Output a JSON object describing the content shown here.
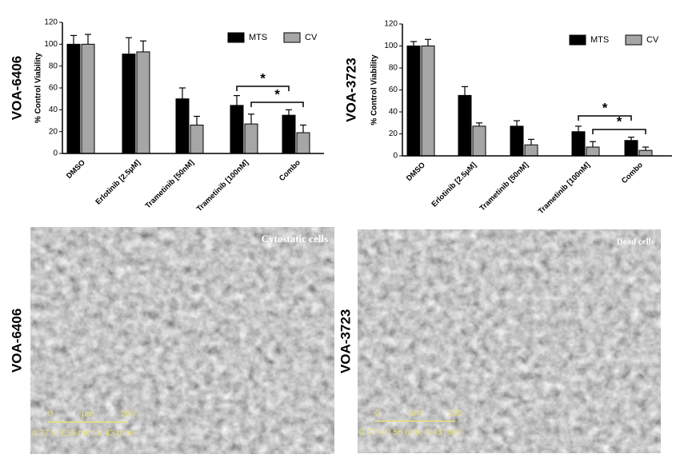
{
  "chart_data": [
    {
      "type": "bar",
      "title": "VOA-6406",
      "y_label": "% Control Viability",
      "categories": [
        "DMSO",
        "Erlotinib [2.5μM]",
        "Trametinib [50nM]",
        "Trametinib [100nM]",
        "Combo"
      ],
      "series": [
        {
          "name": "MTS",
          "color": "#000000",
          "values": [
            100,
            91,
            50,
            44,
            35
          ],
          "errors": [
            8,
            15,
            10,
            9,
            5
          ]
        },
        {
          "name": "CV",
          "color": "#a6a6a6",
          "values": [
            100,
            93,
            26,
            27,
            19
          ],
          "errors": [
            9,
            10,
            8,
            9,
            7
          ]
        }
      ],
      "ylim": [
        0,
        120
      ],
      "yticks": [
        0,
        20,
        40,
        60,
        80,
        100,
        120
      ],
      "annotations": [
        "*",
        "*"
      ]
    },
    {
      "type": "bar",
      "title": "VOA-3723",
      "y_label": "% Control Viability",
      "categories": [
        "DMSO",
        "Erlotinib [2.5μM]",
        "Trametinib [50nM]",
        "Trametinib [100nM]",
        "Combo"
      ],
      "series": [
        {
          "name": "MTS",
          "color": "#000000",
          "values": [
            100,
            55,
            27,
            22,
            14
          ],
          "errors": [
            4,
            8,
            5,
            5,
            3
          ]
        },
        {
          "name": "CV",
          "color": "#a6a6a6",
          "values": [
            100,
            27,
            10,
            8,
            5
          ],
          "errors": [
            6,
            3,
            5,
            5,
            3
          ]
        }
      ],
      "ylim": [
        0,
        120
      ],
      "yticks": [
        0,
        20,
        40,
        60,
        80,
        100,
        120
      ],
      "annotations": [
        "*",
        "*"
      ]
    }
  ],
  "panels": [
    {
      "label": "VOA-6406",
      "caption": "Cytostatic cells",
      "scale_start": "0",
      "scale_unit": "µm",
      "scale_end": "200",
      "scale_info": "0.77 x 0.56 mm; 0.43 mm²"
    },
    {
      "label": "VOA-3723",
      "caption": "Dead cells",
      "scale_start": "0",
      "scale_unit": "µm",
      "scale_end": "200",
      "scale_info": "0.77 x 0.56 mm; 0.43 mm²"
    }
  ]
}
